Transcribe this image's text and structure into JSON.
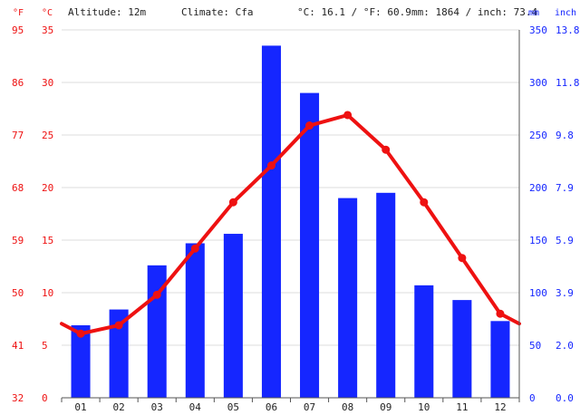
{
  "header": {
    "altitude": "Altitude: 12m",
    "climate": "Climate: Cfa",
    "temperature_avg": "°C: 16.1 / °F: 60.9",
    "precipitation_total": "mm: 1864 / inch: 73.4"
  },
  "axes": {
    "fahrenheit_unit": "°F",
    "celsius_unit": "°C",
    "mm_unit": "mm",
    "inch_unit": "inch"
  },
  "colors": {
    "temperature": "#ee1111",
    "precipitation": "#1526ff",
    "grid": "#dddddd",
    "axis": "#555555"
  },
  "chart_data": {
    "type": "bar",
    "categories": [
      "01",
      "02",
      "03",
      "04",
      "05",
      "06",
      "07",
      "08",
      "09",
      "10",
      "11",
      "12"
    ],
    "series": [
      {
        "chart_type": "bar",
        "axis": "right",
        "values": [
          69,
          84,
          126,
          147,
          156,
          335,
          290,
          190,
          195,
          107,
          93,
          73
        ]
      },
      {
        "chart_type": "line",
        "axis": "left",
        "values": [
          6.1,
          6.9,
          9.8,
          14.2,
          18.6,
          22.1,
          25.9,
          26.9,
          23.6,
          18.6,
          13.3,
          8.0
        ]
      }
    ],
    "left_axis_celsius": {
      "ticks": [
        "0",
        "5",
        "10",
        "15",
        "20",
        "25",
        "30",
        "35"
      ],
      "ylim": [
        0,
        35
      ]
    },
    "left_axis_fahrenheit": {
      "ticks": [
        "32",
        "41",
        "50",
        "59",
        "68",
        "77",
        "86",
        "95"
      ]
    },
    "right_axis_mm": {
      "ticks": [
        "0",
        "50",
        "100",
        "150",
        "200",
        "250",
        "300",
        "350"
      ],
      "ylim": [
        0,
        350
      ]
    },
    "right_axis_inch": {
      "ticks": [
        "0.0",
        "2.0",
        "3.9",
        "5.9",
        "7.9",
        "9.8",
        "11.8",
        "13.8"
      ]
    },
    "grid": true
  }
}
